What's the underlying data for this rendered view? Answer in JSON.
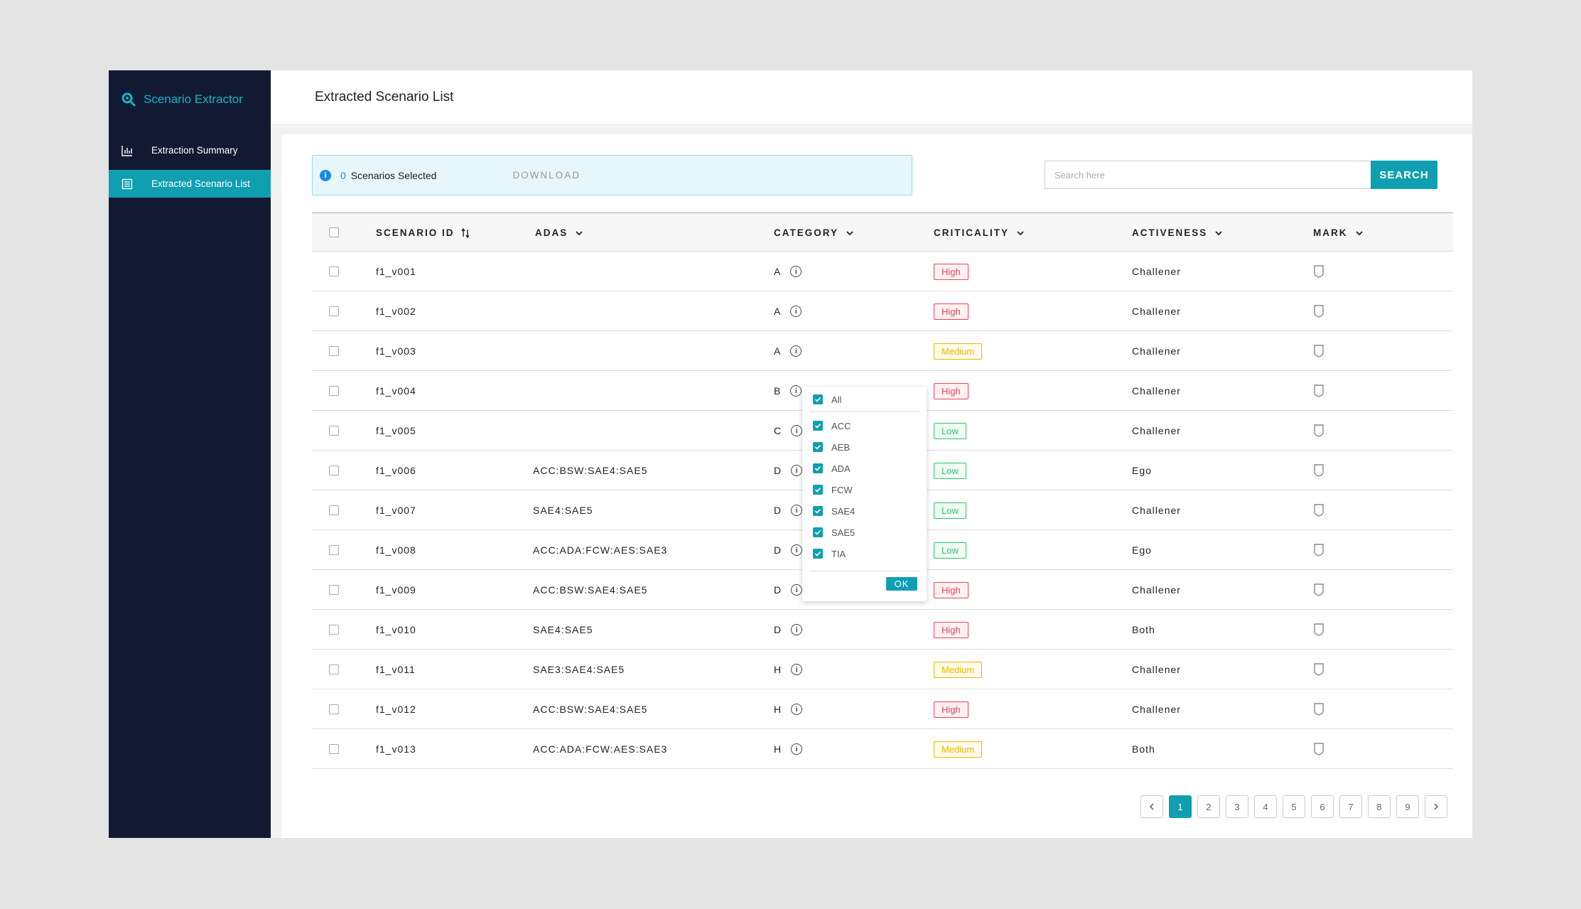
{
  "app": {
    "brand": "Scenario Extractor"
  },
  "nav": [
    {
      "label": "Extraction Summary",
      "icon": "bar-chart-icon",
      "active": false
    },
    {
      "label": "Extracted Scenario List",
      "icon": "list-icon",
      "active": true
    }
  ],
  "page": {
    "title": "Extracted Scenario List"
  },
  "selection": {
    "count": "0",
    "label": "Scenarios Selected",
    "download": "DOWNLOAD"
  },
  "search": {
    "placeholder": "Search here",
    "button": "SEARCH"
  },
  "table": {
    "columns": [
      "SCENARIO ID",
      "ADAS",
      "CATEGORY",
      "CRITICALITY",
      "ACTIVENESS",
      "MARK"
    ],
    "rows": [
      {
        "id": "f1_v001",
        "adas": "",
        "category": "A",
        "criticality": "High",
        "activeness": "Challener"
      },
      {
        "id": "f1_v002",
        "adas": "",
        "category": "A",
        "criticality": "High",
        "activeness": "Challener"
      },
      {
        "id": "f1_v003",
        "adas": "",
        "category": "A",
        "criticality": "Medium",
        "activeness": "Challener"
      },
      {
        "id": "f1_v004",
        "adas": "",
        "category": "B",
        "criticality": "High",
        "activeness": "Challener"
      },
      {
        "id": "f1_v005",
        "adas": "",
        "category": "C",
        "criticality": "Low",
        "activeness": "Challener"
      },
      {
        "id": "f1_v006",
        "adas": "ACC:BSW:SAE4:SAE5",
        "category": "D",
        "criticality": "Low",
        "activeness": "Ego"
      },
      {
        "id": "f1_v007",
        "adas": "SAE4:SAE5",
        "category": "D",
        "criticality": "Low",
        "activeness": "Challener"
      },
      {
        "id": "f1_v008",
        "adas": "ACC:ADA:FCW:AES:SAE3",
        "category": "D",
        "criticality": "Low",
        "activeness": "Ego"
      },
      {
        "id": "f1_v009",
        "adas": "ACC:BSW:SAE4:SAE5",
        "category": "D",
        "criticality": "High",
        "activeness": "Challener"
      },
      {
        "id": "f1_v010",
        "adas": "SAE4:SAE5",
        "category": "D",
        "criticality": "High",
        "activeness": "Both"
      },
      {
        "id": "f1_v011",
        "adas": "SAE3:SAE4:SAE5",
        "category": "H",
        "criticality": "Medium",
        "activeness": "Challener"
      },
      {
        "id": "f1_v012",
        "adas": "ACC:BSW:SAE4:SAE5",
        "category": "H",
        "criticality": "High",
        "activeness": "Challener"
      },
      {
        "id": "f1_v013",
        "adas": "ACC:ADA:FCW:AES:SAE3",
        "category": "H",
        "criticality": "Medium",
        "activeness": "Both"
      }
    ]
  },
  "adas_filter": {
    "all_label": "All",
    "options": [
      "ACC",
      "AEB",
      "ADA",
      "FCW",
      "SAE4",
      "SAE5",
      "TIA"
    ],
    "ok": "OK"
  },
  "pagination": {
    "pages": [
      "1",
      "2",
      "3",
      "4",
      "5",
      "6",
      "7",
      "8",
      "9"
    ],
    "current": "1",
    "prev_icon": "chevron-left-icon",
    "next_icon": "chevron-right-icon"
  },
  "colors": {
    "accent": "#0f9fb1",
    "sidebar": "#121a33",
    "high": "#e9445a",
    "medium": "#f0b400",
    "low": "#2fc269"
  }
}
